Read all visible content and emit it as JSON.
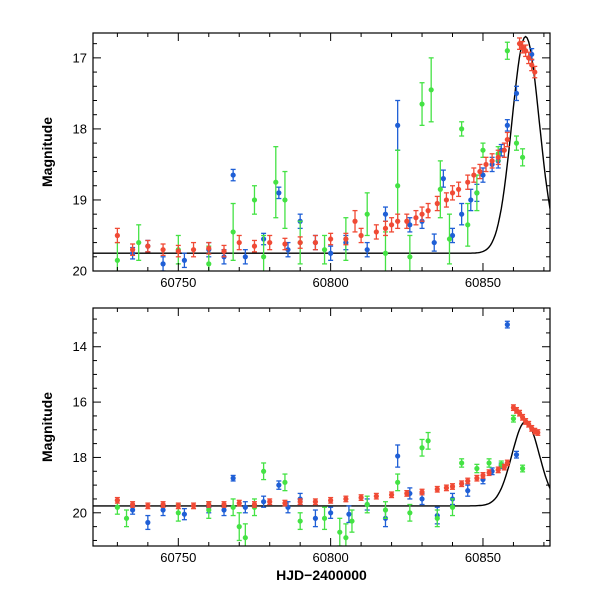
{
  "chart_data": [
    {
      "type": "scatter",
      "panel": "top",
      "ylabel": "Magnitude",
      "xlabel": "",
      "xlim": [
        60722,
        60872
      ],
      "ylim": [
        20,
        16.65
      ],
      "y_inverted": true,
      "xticks": [
        60750,
        60800,
        60850
      ],
      "xtick_labels": [
        "60750",
        "60800",
        "60850"
      ],
      "yticks": [
        17,
        18,
        19,
        20
      ],
      "ytick_labels": [
        "17",
        "18",
        "19",
        "20"
      ],
      "series": [
        {
          "color": "#1f5fd6",
          "points": [
            [
              60735,
              19.75,
              0.08
            ],
            [
              60740,
              19.65,
              0.08
            ],
            [
              60745,
              19.9,
              0.1
            ],
            [
              60752,
              19.85,
              0.1
            ],
            [
              60760,
              19.7,
              0.1
            ],
            [
              60765,
              19.8,
              0.1
            ],
            [
              60768,
              18.65,
              0.08
            ],
            [
              60772,
              19.8,
              0.1
            ],
            [
              60778,
              19.55,
              0.08
            ],
            [
              60783,
              18.9,
              0.08
            ],
            [
              60786,
              19.7,
              0.1
            ],
            [
              60790,
              19.3,
              0.1
            ],
            [
              60795,
              19.6,
              0.1
            ],
            [
              60800,
              19.75,
              0.1
            ],
            [
              60805,
              19.6,
              0.1
            ],
            [
              60812,
              19.7,
              0.1
            ],
            [
              60818,
              19.2,
              0.1
            ],
            [
              60822,
              17.95,
              0.35
            ],
            [
              60826,
              19.35,
              0.1
            ],
            [
              60830,
              19.3,
              0.1
            ],
            [
              60834,
              19.6,
              0.12
            ],
            [
              60837,
              18.7,
              0.12
            ],
            [
              60840,
              19.5,
              0.1
            ],
            [
              60843,
              19.2,
              0.15
            ],
            [
              60846,
              19.0,
              0.15
            ],
            [
              60848,
              18.9,
              0.12
            ],
            [
              60850,
              18.65,
              0.1
            ],
            [
              60853,
              18.5,
              0.1
            ],
            [
              60855,
              18.45,
              0.1
            ],
            [
              60856,
              18.3,
              0.08
            ],
            [
              60858,
              17.95,
              0.08
            ],
            [
              60861,
              17.5,
              0.1
            ],
            [
              60866,
              16.95,
              0.08
            ]
          ]
        },
        {
          "color": "#44e244",
          "points": [
            [
              60730,
              19.85,
              0.25
            ],
            [
              60737,
              19.6,
              0.25
            ],
            [
              60750,
              19.7,
              0.2
            ],
            [
              60760,
              19.9,
              0.25
            ],
            [
              60768,
              19.45,
              0.4
            ],
            [
              60775,
              19.0,
              0.2
            ],
            [
              60778,
              19.8,
              0.3
            ],
            [
              60782,
              18.75,
              0.5
            ],
            [
              60785,
              19.0,
              0.4
            ],
            [
              60790,
              19.6,
              0.3
            ],
            [
              60798,
              19.7,
              0.2
            ],
            [
              60805,
              19.55,
              0.3
            ],
            [
              60812,
              19.2,
              0.3
            ],
            [
              60818,
              19.75,
              0.3
            ],
            [
              60822,
              18.8,
              0.5
            ],
            [
              60826,
              19.8,
              0.3
            ],
            [
              60830,
              17.65,
              0.3
            ],
            [
              60833,
              17.45,
              0.45
            ],
            [
              60836,
              18.85,
              0.4
            ],
            [
              60839,
              19.55,
              0.35
            ],
            [
              60843,
              18.0,
              0.1
            ],
            [
              60845,
              19.35,
              0.3
            ],
            [
              60848,
              18.9,
              0.25
            ],
            [
              60850,
              18.3,
              0.1
            ],
            [
              60855,
              18.35,
              0.1
            ],
            [
              60858,
              16.9,
              0.12
            ],
            [
              60861,
              18.2,
              0.1
            ],
            [
              60863,
              18.4,
              0.12
            ]
          ]
        },
        {
          "color": "#f04a35",
          "points": [
            [
              60730,
              19.5,
              0.1
            ],
            [
              60735,
              19.7,
              0.08
            ],
            [
              60740,
              19.65,
              0.08
            ],
            [
              60745,
              19.7,
              0.08
            ],
            [
              60750,
              19.72,
              0.08
            ],
            [
              60755,
              19.7,
              0.1
            ],
            [
              60760,
              19.68,
              0.08
            ],
            [
              60765,
              19.72,
              0.08
            ],
            [
              60770,
              19.6,
              0.1
            ],
            [
              60775,
              19.65,
              0.08
            ],
            [
              60780,
              19.6,
              0.1
            ],
            [
              60785,
              19.62,
              0.08
            ],
            [
              60790,
              19.6,
              0.08
            ],
            [
              60795,
              19.6,
              0.1
            ],
            [
              60800,
              19.55,
              0.08
            ],
            [
              60805,
              19.55,
              0.08
            ],
            [
              60808,
              19.3,
              0.15
            ],
            [
              60810,
              19.5,
              0.1
            ],
            [
              60815,
              19.45,
              0.1
            ],
            [
              60818,
              19.4,
              0.1
            ],
            [
              60820,
              19.35,
              0.1
            ],
            [
              60822,
              19.3,
              0.1
            ],
            [
              60825,
              19.3,
              0.1
            ],
            [
              60828,
              19.25,
              0.1
            ],
            [
              60830,
              19.2,
              0.1
            ],
            [
              60832,
              19.15,
              0.1
            ],
            [
              60835,
              19.05,
              0.1
            ],
            [
              60838,
              19.0,
              0.1
            ],
            [
              60840,
              18.9,
              0.1
            ],
            [
              60842,
              18.85,
              0.1
            ],
            [
              60845,
              18.75,
              0.1
            ],
            [
              60847,
              18.65,
              0.1
            ],
            [
              60849,
              18.6,
              0.1
            ],
            [
              60851,
              18.5,
              0.1
            ],
            [
              60853,
              18.45,
              0.1
            ],
            [
              60855,
              18.4,
              0.1
            ],
            [
              60857,
              18.3,
              0.1
            ],
            [
              60858,
              18.15,
              0.1
            ],
            [
              60862,
              16.8,
              0.08
            ],
            [
              60863,
              16.85,
              0.08
            ],
            [
              60864,
              16.9,
              0.08
            ],
            [
              60865,
              17.0,
              0.08
            ],
            [
              60866,
              17.1,
              0.08
            ],
            [
              60867,
              17.2,
              0.08
            ]
          ]
        }
      ]
    },
    {
      "type": "scatter",
      "panel": "bottom",
      "ylabel": "Magnitude",
      "xlabel": "HJD−2400000",
      "xlim": [
        60722,
        60872
      ],
      "ylim": [
        21.2,
        12.6
      ],
      "y_inverted": true,
      "xticks": [
        60750,
        60800,
        60850
      ],
      "xtick_labels": [
        "60750",
        "60800",
        "60850"
      ],
      "yticks": [
        14,
        16,
        18,
        20
      ],
      "ytick_labels": [
        "14",
        "16",
        "18",
        "20"
      ],
      "series": [
        {
          "color": "#1f5fd6",
          "points": [
            [
              60735,
              19.9,
              0.15
            ],
            [
              60740,
              20.35,
              0.25
            ],
            [
              60745,
              19.9,
              0.2
            ],
            [
              60752,
              20.05,
              0.2
            ],
            [
              60760,
              19.8,
              0.2
            ],
            [
              60765,
              19.9,
              0.2
            ],
            [
              60768,
              18.75,
              0.1
            ],
            [
              60772,
              19.8,
              0.2
            ],
            [
              60778,
              19.6,
              0.2
            ],
            [
              60783,
              19.0,
              0.15
            ],
            [
              60786,
              19.8,
              0.2
            ],
            [
              60790,
              19.5,
              0.2
            ],
            [
              60795,
              20.2,
              0.3
            ],
            [
              60800,
              20.0,
              0.2
            ],
            [
              60806,
              20.05,
              0.3
            ],
            [
              60812,
              19.7,
              0.2
            ],
            [
              60818,
              20.2,
              0.3
            ],
            [
              60822,
              17.95,
              0.4
            ],
            [
              60826,
              19.3,
              0.2
            ],
            [
              60830,
              19.5,
              0.2
            ],
            [
              60835,
              20.1,
              0.3
            ],
            [
              60840,
              19.5,
              0.2
            ],
            [
              60845,
              19.2,
              0.2
            ],
            [
              60850,
              18.8,
              0.15
            ],
            [
              60853,
              18.5,
              0.12
            ],
            [
              60856,
              18.3,
              0.1
            ],
            [
              60858,
              13.2,
              0.12
            ],
            [
              60861,
              17.9,
              0.12
            ]
          ]
        },
        {
          "color": "#44e244",
          "points": [
            [
              60730,
              19.8,
              0.25
            ],
            [
              60733,
              20.2,
              0.3
            ],
            [
              60750,
              20.0,
              0.3
            ],
            [
              60760,
              19.9,
              0.3
            ],
            [
              60768,
              19.8,
              0.3
            ],
            [
              60770,
              20.5,
              0.5
            ],
            [
              60772,
              20.9,
              0.5
            ],
            [
              60775,
              19.8,
              0.3
            ],
            [
              60778,
              18.5,
              0.3
            ],
            [
              60785,
              18.9,
              0.3
            ],
            [
              60790,
              20.3,
              0.3
            ],
            [
              60798,
              20.2,
              0.4
            ],
            [
              60803,
              20.7,
              0.5
            ],
            [
              60805,
              20.9,
              0.5
            ],
            [
              60807,
              20.3,
              0.4
            ],
            [
              60812,
              19.7,
              0.3
            ],
            [
              60818,
              19.9,
              0.3
            ],
            [
              60822,
              18.9,
              0.3
            ],
            [
              60826,
              20.0,
              0.3
            ],
            [
              60830,
              17.65,
              0.3
            ],
            [
              60832,
              17.4,
              0.3
            ],
            [
              60835,
              20.2,
              0.3
            ],
            [
              60840,
              19.8,
              0.3
            ],
            [
              60843,
              18.2,
              0.15
            ],
            [
              60848,
              18.4,
              0.15
            ],
            [
              60852,
              18.2,
              0.15
            ],
            [
              60856,
              18.25,
              0.12
            ],
            [
              60860,
              16.6,
              0.12
            ],
            [
              60863,
              18.4,
              0.12
            ]
          ]
        },
        {
          "color": "#f04a35",
          "points": [
            [
              60730,
              19.55,
              0.1
            ],
            [
              60735,
              19.7,
              0.1
            ],
            [
              60740,
              19.75,
              0.1
            ],
            [
              60745,
              19.7,
              0.1
            ],
            [
              60750,
              19.75,
              0.1
            ],
            [
              60755,
              19.75,
              0.1
            ],
            [
              60760,
              19.7,
              0.1
            ],
            [
              60765,
              19.7,
              0.1
            ],
            [
              60770,
              19.65,
              0.1
            ],
            [
              60775,
              19.7,
              0.1
            ],
            [
              60780,
              19.6,
              0.1
            ],
            [
              60785,
              19.65,
              0.1
            ],
            [
              60790,
              19.6,
              0.1
            ],
            [
              60795,
              19.6,
              0.1
            ],
            [
              60800,
              19.55,
              0.1
            ],
            [
              60805,
              19.5,
              0.1
            ],
            [
              60810,
              19.45,
              0.1
            ],
            [
              60815,
              19.4,
              0.1
            ],
            [
              60820,
              19.35,
              0.1
            ],
            [
              60825,
              19.3,
              0.1
            ],
            [
              60830,
              19.25,
              0.1
            ],
            [
              60835,
              19.15,
              0.1
            ],
            [
              60838,
              19.1,
              0.1
            ],
            [
              60840,
              19.05,
              0.1
            ],
            [
              60843,
              18.95,
              0.1
            ],
            [
              60845,
              18.85,
              0.1
            ],
            [
              60848,
              18.75,
              0.1
            ],
            [
              60850,
              18.65,
              0.1
            ],
            [
              60852,
              18.55,
              0.1
            ],
            [
              60855,
              18.45,
              0.1
            ],
            [
              60857,
              18.35,
              0.1
            ],
            [
              60858,
              18.2,
              0.1
            ],
            [
              60860,
              16.2,
              0.1
            ],
            [
              60861,
              16.3,
              0.1
            ],
            [
              60862,
              16.4,
              0.1
            ],
            [
              60863,
              16.55,
              0.1
            ],
            [
              60864,
              16.7,
              0.1
            ],
            [
              60865,
              16.8,
              0.1
            ],
            [
              60866,
              16.95,
              0.1
            ],
            [
              60867,
              17.05,
              0.1
            ],
            [
              60868,
              17.1,
              0.1
            ]
          ]
        }
      ]
    }
  ]
}
